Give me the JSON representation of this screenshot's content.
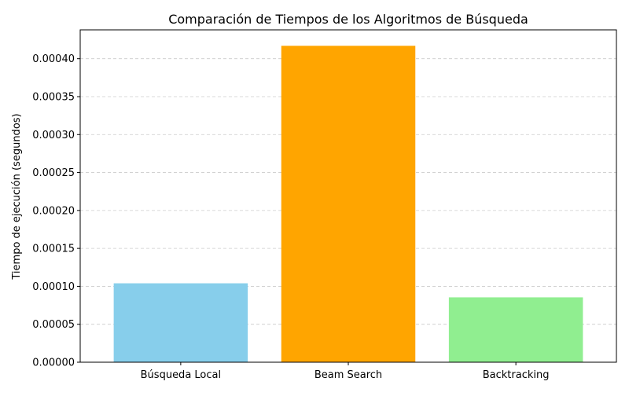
{
  "chart_data": {
    "type": "bar",
    "title": "Comparación de Tiempos de los Algoritmos de Búsqueda",
    "xlabel": "",
    "ylabel": "Tiempo de ejecución (segundos)",
    "categories": [
      "Búsqueda Local",
      "Beam Search",
      "Backtracking"
    ],
    "values": [
      0.000104,
      0.000417,
      8.55e-05
    ],
    "colors": [
      "#87ceeb",
      "#ffa500",
      "#90ee90"
    ],
    "ylim": [
      0,
      0.000438
    ],
    "yticks": [
      0,
      5e-05,
      0.0001,
      0.00015,
      0.0002,
      0.00025,
      0.0003,
      0.00035,
      0.0004
    ],
    "ytick_labels": [
      "0.00000",
      "0.00005",
      "0.00010",
      "0.00015",
      "0.00020",
      "0.00025",
      "0.00030",
      "0.00035",
      "0.00040"
    ],
    "grid": {
      "axis": "y",
      "style": "dashed",
      "color": "#cccccc"
    },
    "legend": "none"
  }
}
